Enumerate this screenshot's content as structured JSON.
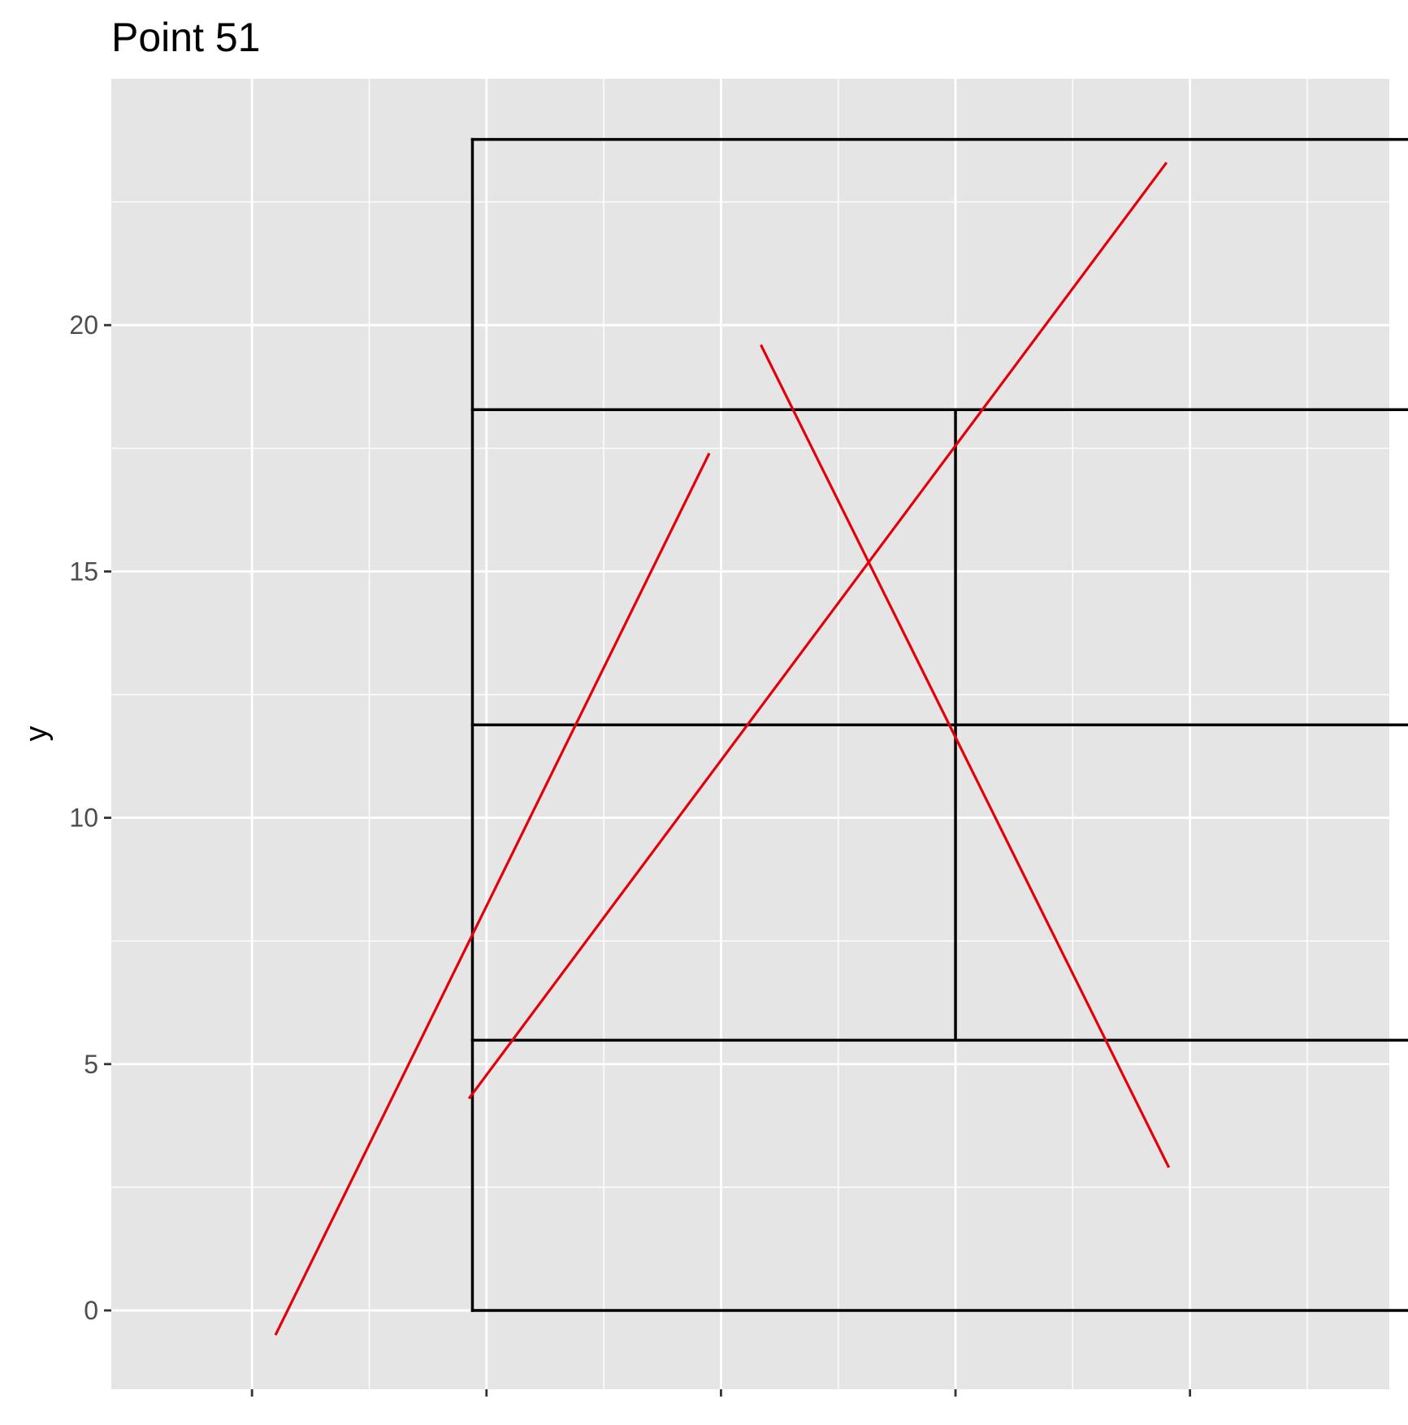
{
  "chart_data": {
    "type": "line",
    "title": "Point 51",
    "xlabel": "",
    "ylabel": "y",
    "xlim": [
      -12,
      97
    ],
    "ylim": [
      -1.6,
      25.0
    ],
    "x_ticks_major": [
      0,
      20,
      40,
      60,
      80
    ],
    "x_ticks_minor": [
      10,
      30,
      50,
      70,
      90
    ],
    "y_ticks": [
      0,
      5,
      10,
      15,
      20
    ],
    "y_tick_labels": [
      "0",
      "5",
      "10",
      "15",
      "20"
    ],
    "y_ticks_minor": [
      2.5,
      7.5,
      12.5,
      17.5,
      22.5
    ],
    "grid": true,
    "legend": "none",
    "colors": {
      "panel_background": "#e5e5e5",
      "grid": "#ffffff",
      "court_lines": "#000000",
      "red_lines": "#e3000b"
    },
    "court_segments": [
      {
        "name": "outer-top",
        "x": [
          18.8,
          101.0
        ],
        "y": [
          23.77,
          23.77
        ]
      },
      {
        "name": "outer-bottom",
        "x": [
          18.8,
          101.0
        ],
        "y": [
          0,
          0
        ]
      },
      {
        "name": "outer-left",
        "x": [
          18.8,
          18.8
        ],
        "y": [
          0,
          23.77
        ]
      },
      {
        "name": "outer-right",
        "x": [
          101.0,
          101.0
        ],
        "y": [
          0,
          23.77
        ]
      },
      {
        "name": "service-top",
        "x": [
          18.8,
          101.0
        ],
        "y": [
          18.285,
          18.285
        ]
      },
      {
        "name": "net",
        "x": [
          18.8,
          101.0
        ],
        "y": [
          11.885,
          11.885
        ]
      },
      {
        "name": "service-bottom",
        "x": [
          18.8,
          101.0
        ],
        "y": [
          5.485,
          5.485
        ]
      },
      {
        "name": "center-service",
        "x": [
          60.0,
          60.0
        ],
        "y": [
          5.485,
          18.285
        ]
      }
    ],
    "series": [
      {
        "x": [
          2.0,
          39.0
        ],
        "y": [
          -0.5,
          17.4
        ]
      },
      {
        "x": [
          18.5,
          78.0
        ],
        "y": [
          4.3,
          23.3
        ]
      },
      {
        "x": [
          43.4,
          78.2
        ],
        "y": [
          19.6,
          2.9
        ]
      }
    ]
  }
}
